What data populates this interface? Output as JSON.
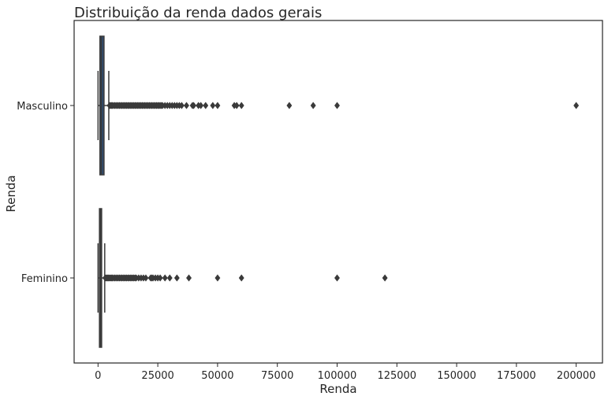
{
  "chart_data": {
    "type": "boxplot",
    "orientation": "horizontal",
    "title": "Distribuição da renda dados gerais",
    "xlabel": "Renda",
    "ylabel": "Renda",
    "xlim": [
      -10000,
      211000
    ],
    "xticks": [
      0,
      25000,
      50000,
      75000,
      100000,
      125000,
      150000,
      175000,
      200000
    ],
    "xtick_labels": [
      "0",
      "25000",
      "50000",
      "75000",
      "100000",
      "125000",
      "150000",
      "175000",
      "200000"
    ],
    "grid": false,
    "categories": [
      "Masculino",
      "Feminino"
    ],
    "boxes": [
      {
        "category": "Masculino",
        "color": "#2f4b6e",
        "whisker_low": 0,
        "q1": 800,
        "median": 1400,
        "q3": 2500,
        "whisker_high": 4500,
        "outliers": [
          4800,
          5200,
          5600,
          6000,
          6500,
          7000,
          7500,
          8000,
          8500,
          9000,
          9500,
          10000,
          10500,
          11000,
          11500,
          12000,
          12500,
          13000,
          13500,
          14000,
          14500,
          15000,
          15500,
          16000,
          16500,
          17000,
          17500,
          18000,
          18500,
          19000,
          19500,
          20000,
          20500,
          21000,
          21500,
          22000,
          22500,
          23000,
          23500,
          24000,
          24500,
          25000,
          25500,
          26000,
          26500,
          27000,
          28000,
          29000,
          30000,
          31000,
          32000,
          33000,
          34000,
          35000,
          37000,
          39500,
          40000,
          42000,
          43000,
          45000,
          48000,
          50000,
          57000,
          58000,
          60000,
          80000,
          90000,
          100000,
          200000
        ]
      },
      {
        "category": "Feminino",
        "color": "#3f3f3f",
        "whisker_low": 0,
        "q1": 600,
        "median": 900,
        "q3": 1500,
        "whisker_high": 2800,
        "outliers": [
          3000,
          3300,
          3600,
          4000,
          4400,
          4800,
          5200,
          5600,
          6000,
          6500,
          7000,
          7500,
          8000,
          8500,
          9000,
          9500,
          10000,
          10500,
          11000,
          11500,
          12000,
          12500,
          13000,
          13500,
          14000,
          14500,
          15000,
          15500,
          16000,
          17000,
          18000,
          19000,
          20000,
          22000,
          22500,
          23000,
          24000,
          25000,
          26000,
          28000,
          30000,
          33000,
          38000,
          50000,
          60000,
          100000,
          120000
        ]
      }
    ]
  }
}
